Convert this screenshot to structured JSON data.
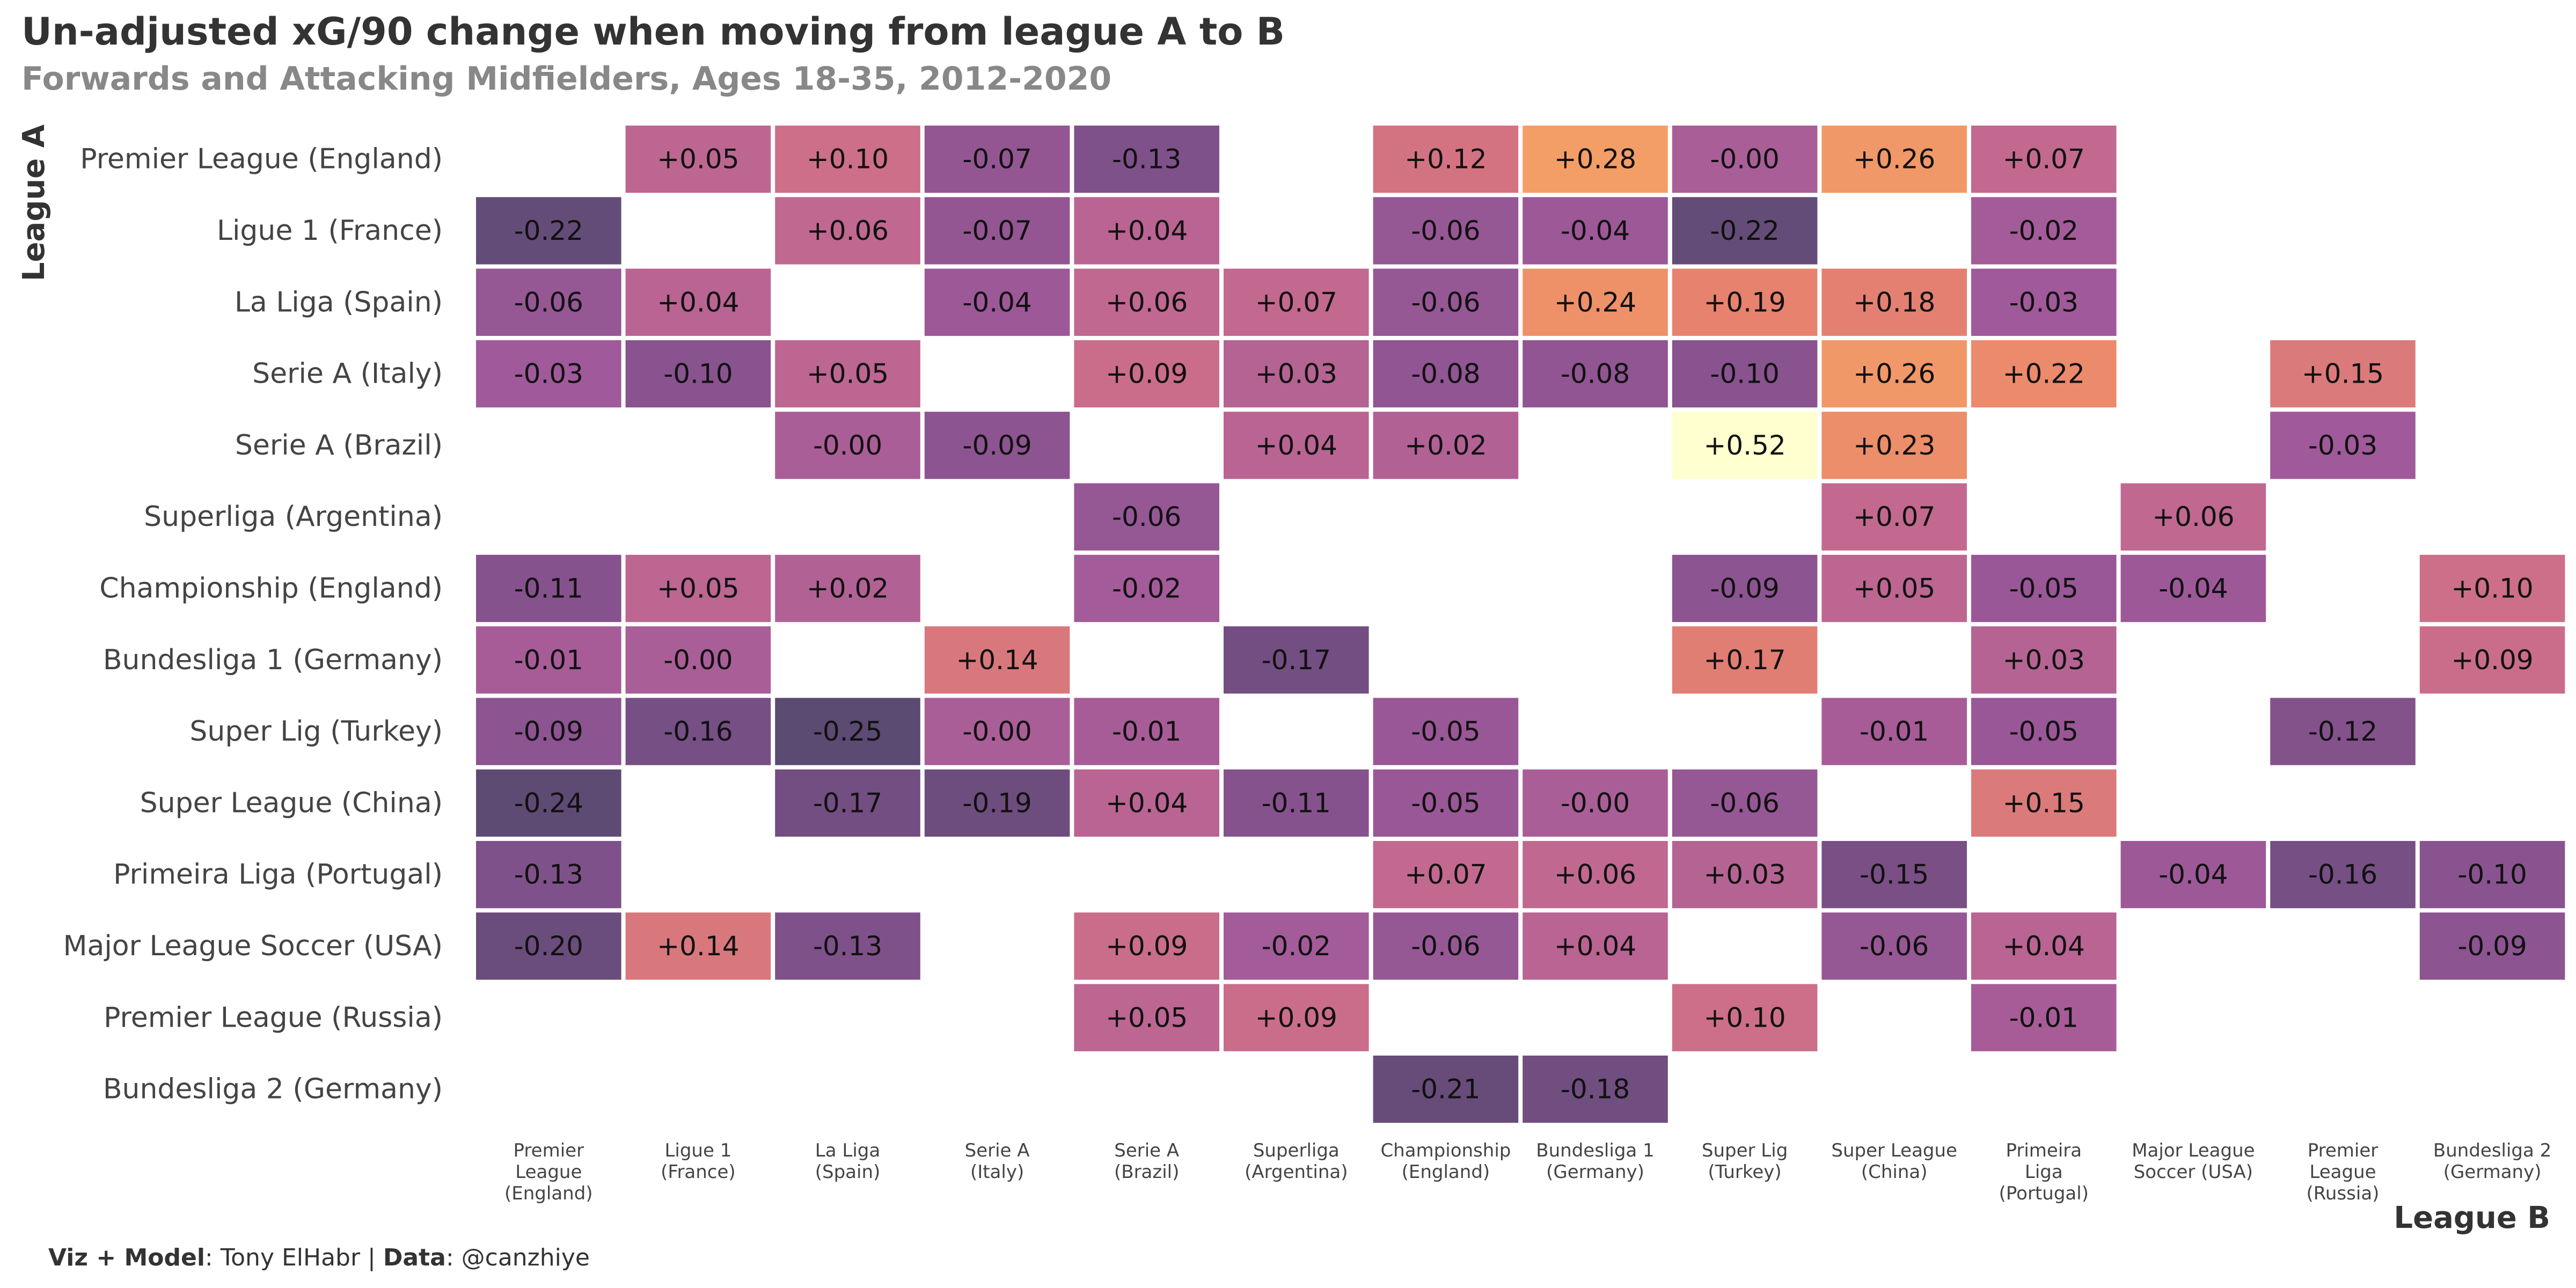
{
  "chart_data": {
    "type": "heatmap",
    "title": "Un-adjusted xG/90 change when moving from league A to B",
    "subtitle": "Forwards and Attacking Midfielders, Ages 18-35, 2012-2020",
    "xlabel": "League B",
    "ylabel": "League A",
    "rows": [
      "Premier League (England)",
      "Ligue 1 (France)",
      "La Liga (Spain)",
      "Serie A (Italy)",
      "Serie A (Brazil)",
      "Superliga (Argentina)",
      "Championship (England)",
      "Bundesliga 1 (Germany)",
      "Super Lig (Turkey)",
      "Super League (China)",
      "Primeira Liga (Portugal)",
      "Major League Soccer (USA)",
      "Premier League (Russia)",
      "Bundesliga 2 (Germany)"
    ],
    "columns": [
      [
        "Premier",
        "League",
        "(England)"
      ],
      [
        "Ligue 1",
        "(France)"
      ],
      [
        "La Liga",
        "(Spain)"
      ],
      [
        "Serie A",
        "(Italy)"
      ],
      [
        "Serie A",
        "(Brazil)"
      ],
      [
        "Superliga",
        "(Argentina)"
      ],
      [
        "Championship",
        "(England)"
      ],
      [
        "Bundesliga 1",
        "(Germany)"
      ],
      [
        "Super Lig",
        "(Turkey)"
      ],
      [
        "Super League",
        "(China)"
      ],
      [
        "Primeira",
        "Liga",
        "(Portugal)"
      ],
      [
        "Major League",
        "Soccer (USA)"
      ],
      [
        "Premier",
        "League",
        "(Russia)"
      ],
      [
        "Bundesliga 2",
        "(Germany)"
      ]
    ],
    "values": [
      [
        null,
        0.05,
        0.1,
        -0.07,
        -0.13,
        null,
        0.12,
        0.28,
        -0.001,
        0.26,
        0.07,
        null,
        null,
        null
      ],
      [
        -0.22,
        null,
        0.06,
        -0.07,
        0.04,
        null,
        -0.06,
        -0.04,
        -0.22,
        null,
        -0.02,
        null,
        null,
        null
      ],
      [
        -0.06,
        0.04,
        null,
        -0.04,
        0.06,
        0.07,
        -0.06,
        0.24,
        0.19,
        0.18,
        -0.03,
        null,
        null,
        null
      ],
      [
        -0.03,
        -0.1,
        0.05,
        null,
        0.09,
        0.03,
        -0.08,
        -0.08,
        -0.1,
        0.26,
        0.22,
        null,
        0.15,
        null
      ],
      [
        null,
        null,
        -0.001,
        -0.09,
        null,
        0.04,
        0.02,
        null,
        0.52,
        0.23,
        null,
        null,
        -0.03,
        null
      ],
      [
        null,
        null,
        null,
        null,
        -0.06,
        null,
        null,
        null,
        null,
        0.07,
        null,
        0.06,
        null,
        null
      ],
      [
        -0.11,
        0.05,
        0.02,
        null,
        -0.02,
        null,
        null,
        null,
        -0.09,
        0.05,
        -0.05,
        -0.04,
        null,
        0.1
      ],
      [
        -0.01,
        -0.001,
        null,
        0.14,
        null,
        -0.17,
        null,
        null,
        0.17,
        null,
        0.03,
        null,
        null,
        0.09
      ],
      [
        -0.09,
        -0.16,
        -0.25,
        -0.001,
        -0.01,
        null,
        -0.05,
        null,
        null,
        -0.01,
        -0.05,
        null,
        -0.12,
        null
      ],
      [
        -0.24,
        null,
        -0.17,
        -0.19,
        0.04,
        -0.11,
        -0.05,
        -0.001,
        -0.06,
        null,
        0.15,
        null,
        null,
        null
      ],
      [
        -0.13,
        null,
        null,
        null,
        null,
        null,
        0.07,
        0.06,
        0.03,
        -0.15,
        null,
        -0.04,
        -0.16,
        -0.1
      ],
      [
        -0.2,
        0.14,
        -0.13,
        null,
        0.09,
        -0.02,
        -0.06,
        0.04,
        null,
        -0.06,
        0.04,
        null,
        null,
        -0.09
      ],
      [
        null,
        null,
        null,
        null,
        0.05,
        0.09,
        null,
        null,
        0.1,
        null,
        -0.01,
        null,
        null,
        null
      ],
      [
        null,
        null,
        null,
        null,
        null,
        null,
        -0.21,
        -0.18,
        null,
        null,
        null,
        null,
        null,
        null
      ]
    ],
    "cell_labels": [
      [
        null,
        "+0.05",
        "+0.10",
        "-0.07",
        "-0.13",
        null,
        "+0.12",
        "+0.28",
        "-0.00",
        "+0.26",
        "+0.07",
        null,
        null,
        null
      ],
      [
        "-0.22",
        null,
        "+0.06",
        "-0.07",
        "+0.04",
        null,
        "-0.06",
        "-0.04",
        "-0.22",
        null,
        "-0.02",
        null,
        null,
        null
      ],
      [
        "-0.06",
        "+0.04",
        null,
        "-0.04",
        "+0.06",
        "+0.07",
        "-0.06",
        "+0.24",
        "+0.19",
        "+0.18",
        "-0.03",
        null,
        null,
        null
      ],
      [
        "-0.03",
        "-0.10",
        "+0.05",
        null,
        "+0.09",
        "+0.03",
        "-0.08",
        "-0.08",
        "-0.10",
        "+0.26",
        "+0.22",
        null,
        "+0.15",
        null
      ],
      [
        null,
        null,
        "-0.00",
        "-0.09",
        null,
        "+0.04",
        "+0.02",
        null,
        "+0.52",
        "+0.23",
        null,
        null,
        "-0.03",
        null
      ],
      [
        null,
        null,
        null,
        null,
        "-0.06",
        null,
        null,
        null,
        null,
        "+0.07",
        null,
        "+0.06",
        null,
        null
      ],
      [
        "-0.11",
        "+0.05",
        "+0.02",
        null,
        "-0.02",
        null,
        null,
        null,
        "-0.09",
        "+0.05",
        "-0.05",
        "-0.04",
        null,
        "+0.10"
      ],
      [
        "-0.01",
        "-0.00",
        null,
        "+0.14",
        null,
        "-0.17",
        null,
        null,
        "+0.17",
        null,
        "+0.03",
        null,
        null,
        "+0.09"
      ],
      [
        "-0.09",
        "-0.16",
        "-0.25",
        "-0.00",
        "-0.01",
        null,
        "-0.05",
        null,
        null,
        "-0.01",
        "-0.05",
        null,
        "-0.12",
        null
      ],
      [
        "-0.24",
        null,
        "-0.17",
        "-0.19",
        "+0.04",
        "-0.11",
        "-0.05",
        "-0.00",
        "-0.06",
        null,
        "+0.15",
        null,
        null,
        null
      ],
      [
        "-0.13",
        null,
        null,
        null,
        null,
        null,
        "+0.07",
        "+0.06",
        "+0.03",
        "-0.15",
        null,
        "-0.04",
        "-0.16",
        "-0.10"
      ],
      [
        "-0.20",
        "+0.14",
        "-0.13",
        null,
        "+0.09",
        "-0.02",
        "-0.06",
        "+0.04",
        null,
        "-0.06",
        "+0.04",
        null,
        null,
        "-0.09"
      ],
      [
        null,
        null,
        null,
        null,
        "+0.05",
        "+0.09",
        null,
        null,
        "+0.10",
        null,
        "-0.01",
        null,
        null,
        null
      ],
      [
        null,
        null,
        null,
        null,
        null,
        null,
        "-0.21",
        "-0.18",
        null,
        null,
        null,
        null,
        null,
        null
      ]
    ],
    "color_scale": {
      "name": "magma-like",
      "domain": [
        -0.25,
        0.52
      ],
      "stops": [
        "#5b4a72",
        "#7c5088",
        "#a0599a",
        "#c76b8e",
        "#e7826e",
        "#f6a464",
        "#fbe5a0",
        "#ffffd0"
      ]
    }
  },
  "caption": {
    "viz_label": "Viz + Model",
    "viz_value": ": Tony ElHabr | ",
    "data_label": "Data",
    "data_value": ": @canzhiye"
  }
}
